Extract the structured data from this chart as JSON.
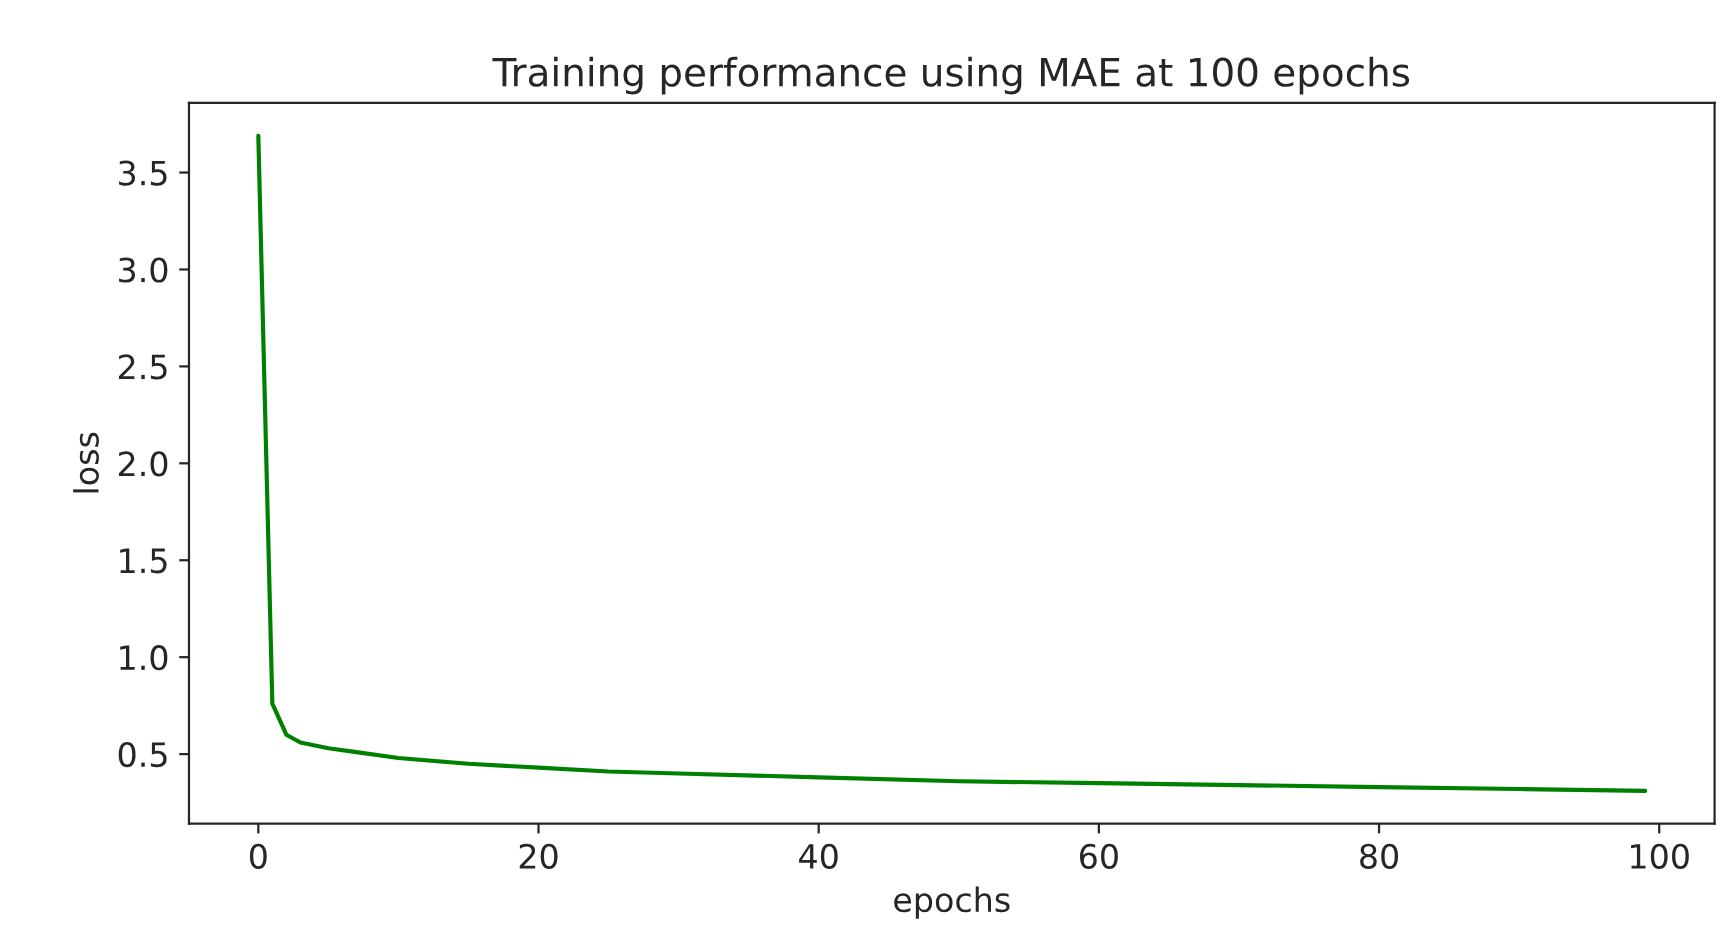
{
  "chart_data": {
    "type": "line",
    "title": "Training performance using MAE at 100 epochs",
    "xlabel": "epochs",
    "ylabel": "loss",
    "x": [
      0,
      1,
      2,
      3,
      5,
      7,
      10,
      15,
      20,
      25,
      30,
      40,
      50,
      60,
      70,
      80,
      90,
      99
    ],
    "series": [
      {
        "color": "#008000",
        "values": [
          3.69,
          0.76,
          0.6,
          0.56,
          0.53,
          0.51,
          0.48,
          0.45,
          0.43,
          0.41,
          0.4,
          0.38,
          0.36,
          0.35,
          0.34,
          0.33,
          0.32,
          0.31
        ]
      }
    ],
    "xlim": [
      -4.95,
      103.95
    ],
    "ylim": [
      0.141,
      3.859
    ],
    "xticks": [
      0,
      20,
      40,
      60,
      80,
      100
    ],
    "yticks": [
      0.5,
      {
        "value": 1,
        "label": "1.0"
      },
      1.5,
      {
        "value": 2,
        "label": "2.0"
      },
      2.5,
      {
        "value": 3,
        "label": "3.0"
      },
      3.5
    ]
  }
}
